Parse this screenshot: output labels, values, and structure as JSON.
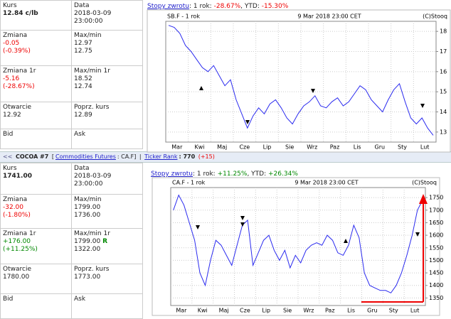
{
  "panels": [
    {
      "rows": [
        [
          {
            "label": "Kurs",
            "value": "12.84 c/lb"
          },
          {
            "label": "Data",
            "value": "2018-03-09",
            "value2": "23:00:00"
          }
        ],
        [
          {
            "label": "Zmiana",
            "value": "-0.05",
            "value2": "(-0.39%)"
          },
          {
            "label": "Max/min",
            "value": "12.97",
            "value2": "12.75"
          }
        ],
        [
          {
            "label": "Zmiana 1r",
            "value": "-5.16",
            "value2": "(-28.67%)"
          },
          {
            "label": "Max/min 1r",
            "value": "18.52",
            "value2": "12.74"
          }
        ],
        [
          {
            "label": "Otwarcie",
            "value": "12.92"
          },
          {
            "label": "Poprz. kurs",
            "value": "12.89"
          }
        ],
        [
          {
            "label": "Bid"
          },
          {
            "label": "Ask"
          }
        ]
      ],
      "returns": {
        "link": "Stopy zwrotu",
        "period": ": 1 rok:",
        "year": "-28.67%",
        "ytd_label": ", YTD:",
        "ytd": "-15.30%"
      }
    },
    {
      "rows": [
        [
          {
            "label": "Kurs",
            "value": "1741.00"
          },
          {
            "label": "Data",
            "value": "2018-03-09",
            "value2": "23:00:00"
          }
        ],
        [
          {
            "label": "Zmiana",
            "value": "-32.00",
            "value2": "(-1.80%)"
          },
          {
            "label": "Max/min",
            "value": "1799.00",
            "value2": "1736.00"
          }
        ],
        [
          {
            "label": "Zmiana 1r",
            "value": "+176.00",
            "value2": "(+11.25%)"
          },
          {
            "label": "Max/min 1r",
            "value": "1799.00",
            "flag": "R",
            "value2": "1322.00"
          }
        ],
        [
          {
            "label": "Otwarcie",
            "value": "1780.00"
          },
          {
            "label": "Poprz. kurs",
            "value": "1773.00"
          }
        ],
        [
          {
            "label": "Bid"
          },
          {
            "label": "Ask"
          }
        ]
      ],
      "returns": {
        "link": "Stopy zwrotu",
        "period": ": 1 rok:",
        "year": "+11.25%",
        "ytd_label": ", YTD:",
        "ytd": "+26.34%"
      }
    }
  ],
  "ticker_bar": {
    "arrows": "<<",
    "name": "COCOA #7",
    "open": "[",
    "group": "Commodities Futures",
    "symbol": ": CA.F]",
    "sep": "|",
    "rank_link": "Ticker Rank",
    "rank": ": 770",
    "rank_change": "(+15)"
  },
  "chart_data": [
    {
      "type": "line",
      "title": "SB.F - 1 rok",
      "date": "9 Mar 2018 23:00 CET",
      "source": "(C)Stooq",
      "categories": [
        "Mar",
        null,
        null,
        null,
        "Kwi",
        null,
        null,
        null,
        "Maj",
        null,
        null,
        null,
        "Cze",
        null,
        null,
        null,
        "Lip",
        null,
        null,
        null,
        "Sie",
        null,
        null,
        null,
        "Wrz",
        null,
        null,
        null,
        "Paz",
        null,
        null,
        null,
        "Lis",
        null,
        null,
        null,
        "Gru",
        null,
        null,
        null,
        "Sty",
        null,
        null,
        null,
        "Lut",
        null,
        null,
        null
      ],
      "series": [
        {
          "name": "SB.F",
          "color": "#2b2bef",
          "values": [
            18.3,
            18.2,
            17.9,
            17.3,
            17.0,
            16.6,
            16.2,
            16.0,
            16.3,
            15.8,
            15.3,
            15.6,
            14.6,
            13.9,
            13.2,
            13.8,
            14.2,
            13.9,
            14.4,
            14.6,
            14.2,
            13.7,
            13.4,
            13.9,
            14.3,
            14.5,
            14.8,
            14.3,
            14.2,
            14.5,
            14.7,
            14.3,
            14.5,
            14.9,
            15.3,
            15.1,
            14.6,
            14.3,
            14.0,
            14.6,
            15.1,
            15.4,
            14.5,
            13.7,
            13.4,
            13.7,
            13.2,
            12.84
          ]
        }
      ],
      "ylim": [
        12.5,
        18.5
      ],
      "yticks": [
        13,
        14,
        15,
        16,
        17,
        18
      ],
      "grid": true
    },
    {
      "type": "line",
      "title": "CA.F - 1 rok",
      "date": "9 Mar 2018 23:00 CET",
      "source": "(C)Stooq",
      "categories": [
        "Mar",
        null,
        null,
        null,
        "Kwi",
        null,
        null,
        null,
        "Maj",
        null,
        null,
        null,
        "Cze",
        null,
        null,
        null,
        "Lip",
        null,
        null,
        null,
        "Sie",
        null,
        null,
        null,
        "Wrz",
        null,
        null,
        null,
        "Paz",
        null,
        null,
        null,
        "Lis",
        null,
        null,
        null,
        "Gru",
        null,
        null,
        null,
        "Sty",
        null,
        null,
        null,
        "Lut",
        null,
        null,
        null
      ],
      "series": [
        {
          "name": "CA.F",
          "color": "#2b2bef",
          "values": [
            1700,
            1760,
            1720,
            1650,
            1580,
            1450,
            1400,
            1500,
            1580,
            1560,
            1520,
            1480,
            1560,
            1640,
            1660,
            1480,
            1530,
            1580,
            1600,
            1540,
            1500,
            1540,
            1470,
            1520,
            1490,
            1540,
            1560,
            1570,
            1560,
            1600,
            1580,
            1530,
            1520,
            1560,
            1640,
            1590,
            1450,
            1400,
            1390,
            1380,
            1380,
            1370,
            1400,
            1450,
            1520,
            1600,
            1700,
            1741
          ]
        }
      ],
      "ylim": [
        1320,
        1790
      ],
      "yticks": [
        1350,
        1400,
        1450,
        1500,
        1550,
        1600,
        1650,
        1700,
        1750
      ],
      "grid": true
    }
  ]
}
